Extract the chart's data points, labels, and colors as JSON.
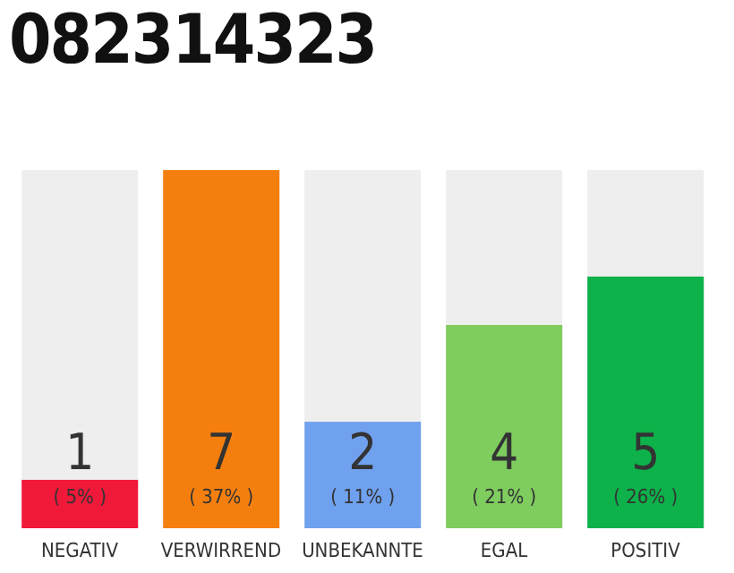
{
  "chart_data": {
    "type": "bar",
    "title": "082314323",
    "categories": [
      "NEGATIV",
      "VERWIRREND",
      "UNBEKANNTE",
      "EGAL",
      "POSITIV"
    ],
    "values": [
      5,
      37,
      11,
      21,
      26
    ],
    "colors": [
      "#f0193a",
      "#f57f0e",
      "#6fa1ee",
      "#7fcc5f",
      "#0db24a"
    ],
    "value_labels": [
      "( 5% )",
      "( 37% )",
      "( 11% )",
      "( 21% )",
      "( 26% )"
    ],
    "annotations": [
      "1",
      "7",
      "2",
      "4",
      "5"
    ]
  }
}
